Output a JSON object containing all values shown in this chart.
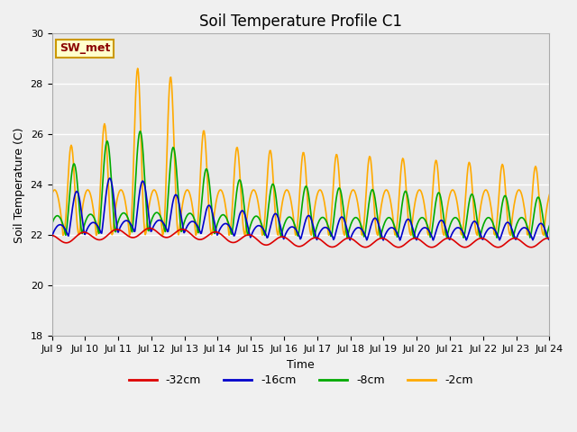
{
  "title": "Soil Temperature Profile C1",
  "xlabel": "Time",
  "ylabel": "Soil Temperature (C)",
  "ylim": [
    18,
    30
  ],
  "background_color": "#e8e8e8",
  "grid_color": "#ffffff",
  "annotation_text": "SW_met",
  "annotation_bg": "#ffffcc",
  "annotation_border": "#cc9900",
  "annotation_text_color": "#8b0000",
  "legend_labels": [
    "-32cm",
    "-16cm",
    "-8cm",
    "-2cm"
  ],
  "line_colors": [
    "#dd0000",
    "#0000cc",
    "#00aa00",
    "#ffaa00"
  ],
  "x_tick_labels": [
    "Jul 9",
    "Jul 10",
    "Jul 11",
    "Jul 12",
    "Jul 13",
    "Jul 14",
    "Jul 15",
    "Jul 16",
    "Jul 17",
    "Jul 18",
    "Jul 19",
    "Jul 20",
    "Jul 21",
    "Jul 22",
    "Jul 23",
    "Jul 24"
  ],
  "title_fontsize": 12,
  "axis_fontsize": 9,
  "tick_fontsize": 8
}
